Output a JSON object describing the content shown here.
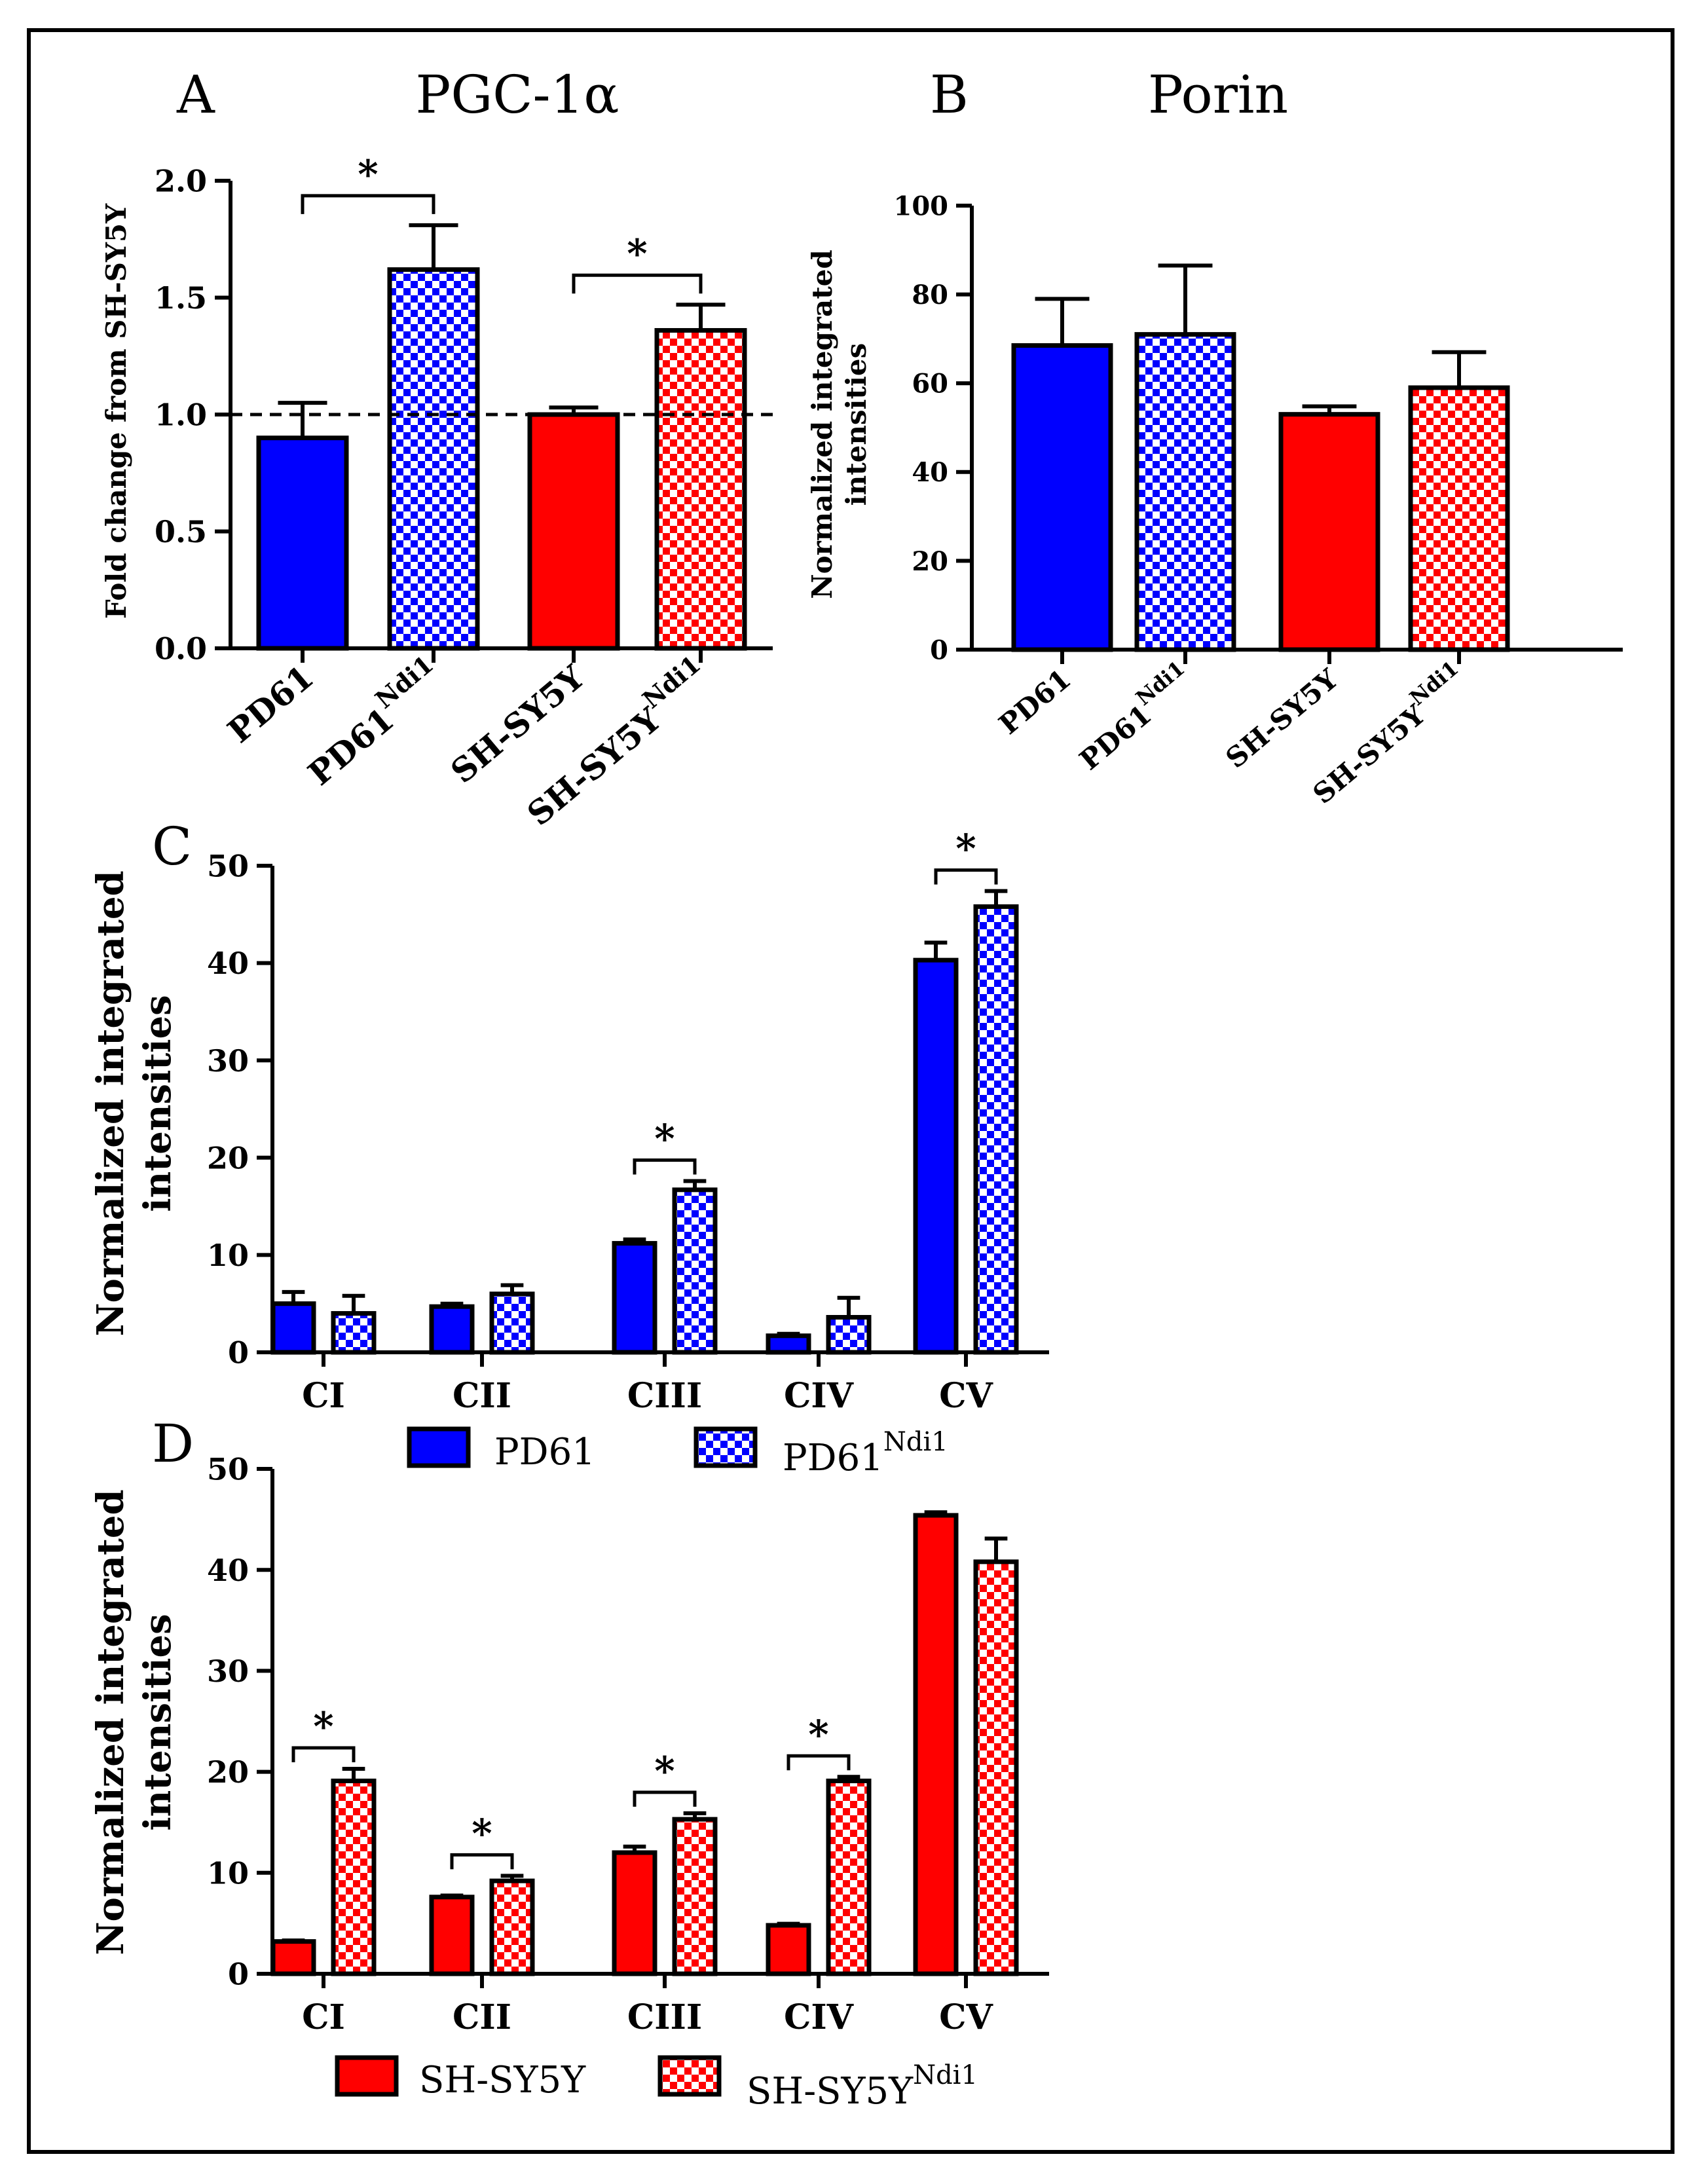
{
  "colors": {
    "blue": "#0000ff",
    "red": "#ff0000",
    "white": "#ffffff",
    "black": "#000000"
  },
  "chart_data": [
    {
      "panel": "A",
      "type": "bar",
      "title": "PGC-1α",
      "ylabel": "Fold change from SH-SY5Y",
      "ylim": [
        0,
        2.0
      ],
      "yticks": [
        "0.0",
        "0.5",
        "1.0",
        "1.5",
        "2.0"
      ],
      "reference_line": 1.0,
      "categories": [
        {
          "base": "PD61",
          "sup": ""
        },
        {
          "base": "PD61",
          "sup": "Ndi1"
        },
        {
          "base": "SH-SY5Y",
          "sup": ""
        },
        {
          "base": "SH-SY5Y",
          "sup": "Ndi1"
        }
      ],
      "values": [
        0.9,
        1.62,
        1.0,
        1.36
      ],
      "errors": [
        0.15,
        0.19,
        0.03,
        0.11
      ],
      "fills": [
        "blue-solid",
        "blue-check",
        "red-solid",
        "red-check"
      ],
      "significance": [
        {
          "pair": [
            0,
            1
          ],
          "label": "*"
        },
        {
          "pair": [
            2,
            3
          ],
          "label": "*"
        }
      ]
    },
    {
      "panel": "B",
      "type": "bar",
      "title": "Porin",
      "ylabel": "Normalized integrated intensities",
      "ylim": [
        0,
        100
      ],
      "yticks": [
        "0",
        "20",
        "40",
        "60",
        "80",
        "100"
      ],
      "categories": [
        {
          "base": "PD61",
          "sup": ""
        },
        {
          "base": "PD61",
          "sup": "Ndi1"
        },
        {
          "base": "SH-SY5Y",
          "sup": ""
        },
        {
          "base": "SH-SY5Y",
          "sup": "Ndi1"
        }
      ],
      "values": [
        68.5,
        71,
        53,
        59
      ],
      "errors": [
        10.5,
        15.5,
        1.8,
        8
      ],
      "fills": [
        "blue-solid",
        "blue-check",
        "red-solid",
        "red-check"
      ],
      "significance": []
    },
    {
      "panel": "C",
      "type": "bar",
      "ylabel": "Normalized integrated intensities",
      "ylim": [
        0,
        50
      ],
      "yticks": [
        "0",
        "10",
        "20",
        "30",
        "40",
        "50"
      ],
      "categories": [
        "CI",
        "CII",
        "CIII",
        "CIV",
        "CV"
      ],
      "series": [
        {
          "name": "PD61",
          "sup": "",
          "fill": "blue-solid",
          "values": [
            5,
            4.7,
            11.2,
            1.7,
            40.3
          ],
          "errors": [
            1.2,
            0.3,
            0.4,
            0.2,
            1.8
          ]
        },
        {
          "name": "PD61",
          "sup": "Ndi1",
          "fill": "blue-check",
          "values": [
            4,
            6,
            16.7,
            3.6,
            45.8
          ],
          "errors": [
            1.8,
            0.9,
            0.9,
            2.0,
            1.6
          ]
        }
      ],
      "significance": [
        {
          "category": 2,
          "label": "*"
        },
        {
          "category": 4,
          "label": "*"
        }
      ]
    },
    {
      "panel": "D",
      "type": "bar",
      "ylabel": "Normalized integrated intensities",
      "ylim": [
        0,
        50
      ],
      "yticks": [
        "0",
        "10",
        "20",
        "30",
        "40",
        "50"
      ],
      "categories": [
        "CI",
        "CII",
        "CIII",
        "CIV",
        "CV"
      ],
      "series": [
        {
          "name": "SH-SY5Y",
          "sup": "",
          "fill": "red-solid",
          "values": [
            3.2,
            7.6,
            12,
            4.8,
            45.4
          ],
          "errors": [
            0.1,
            0.15,
            0.6,
            0.15,
            0.3
          ]
        },
        {
          "name": "SH-SY5Y",
          "sup": "Ndi1",
          "fill": "red-check",
          "values": [
            19.1,
            9.2,
            15.3,
            19.1,
            40.8
          ],
          "errors": [
            1.2,
            0.5,
            0.6,
            0.4,
            2.3
          ]
        }
      ],
      "significance": [
        {
          "category": 0,
          "label": "*"
        },
        {
          "category": 1,
          "label": "*"
        },
        {
          "category": 2,
          "label": "*"
        },
        {
          "category": 3,
          "label": "*"
        }
      ]
    }
  ]
}
